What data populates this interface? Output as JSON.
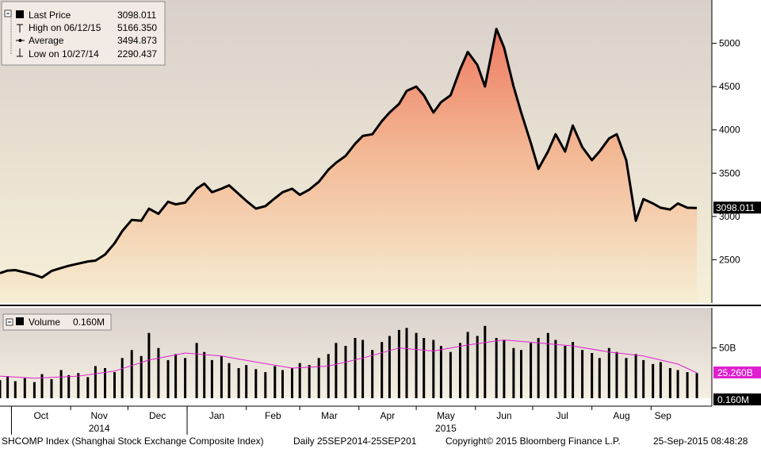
{
  "chart_data": [
    {
      "type": "area",
      "ylim": [
        2000,
        5500
      ],
      "yticks": [
        2500,
        3000,
        3500,
        4000,
        4500,
        5000
      ],
      "x_labels": [
        "Oct",
        "Nov",
        "Dec",
        "Jan",
        "Feb",
        "Mar",
        "Apr",
        "May",
        "Jun",
        "Jul",
        "Aug",
        "Sep"
      ],
      "x_year_labels": [
        "2014",
        "2015"
      ],
      "last_price_tag": "3098.011",
      "legend": [
        {
          "label": "Last Price",
          "value": "3098.011",
          "icon": "filled-square-icon"
        },
        {
          "label": "High on 06/12/15",
          "value": "5166.350",
          "icon": "high-marker-icon"
        },
        {
          "label": "Average",
          "value": "3494.873",
          "icon": "average-marker-icon"
        },
        {
          "label": "Low on 10/27/14",
          "value": "2290.437",
          "icon": "low-marker-icon"
        }
      ],
      "grid": false,
      "legend_position": "top-left",
      "colors": {
        "line": "#000000",
        "fill_top": "#ee7a62",
        "fill_bottom": "#f6eed3",
        "background_top": "#d9d0cb",
        "background_bottom": "#f6f0d8"
      },
      "series": [
        {
          "name": "Last Price",
          "x": [
            "2014-09-25",
            "2014-09-29",
            "2014-10-03",
            "2014-10-08",
            "2014-10-13",
            "2014-10-17",
            "2014-10-22",
            "2014-10-27",
            "2014-10-31",
            "2014-11-05",
            "2014-11-10",
            "2014-11-14",
            "2014-11-19",
            "2014-11-24",
            "2014-11-28",
            "2014-12-03",
            "2014-12-08",
            "2014-12-12",
            "2014-12-17",
            "2014-12-22",
            "2014-12-26",
            "2014-12-31",
            "2015-01-06",
            "2015-01-10",
            "2015-01-14",
            "2015-01-19",
            "2015-01-23",
            "2015-01-28",
            "2015-02-01",
            "2015-02-06",
            "2015-02-11",
            "2015-02-16",
            "2015-02-20",
            "2015-02-25",
            "2015-03-01",
            "2015-03-06",
            "2015-03-11",
            "2015-03-16",
            "2015-03-20",
            "2015-03-25",
            "2015-03-30",
            "2015-04-03",
            "2015-04-08",
            "2015-04-13",
            "2015-04-17",
            "2015-04-22",
            "2015-04-26",
            "2015-05-01",
            "2015-05-05",
            "2015-05-10",
            "2015-05-14",
            "2015-05-19",
            "2015-05-24",
            "2015-05-28",
            "2015-06-02",
            "2015-06-06",
            "2015-06-12",
            "2015-06-16",
            "2015-06-21",
            "2015-06-25",
            "2015-06-30",
            "2015-07-04",
            "2015-07-09",
            "2015-07-13",
            "2015-07-18",
            "2015-07-22",
            "2015-07-27",
            "2015-08-01",
            "2015-08-05",
            "2015-08-10",
            "2015-08-14",
            "2015-08-19",
            "2015-08-24",
            "2015-08-28",
            "2015-09-02",
            "2015-09-06",
            "2015-09-11",
            "2015-09-15",
            "2015-09-20",
            "2015-09-25"
          ],
          "values": [
            2345,
            2375,
            2380,
            2355,
            2325,
            2295,
            2370,
            2405,
            2430,
            2455,
            2480,
            2490,
            2560,
            2690,
            2830,
            2960,
            2950,
            3090,
            3030,
            3170,
            3140,
            3160,
            3320,
            3380,
            3280,
            3320,
            3360,
            3260,
            3180,
            3090,
            3120,
            3210,
            3280,
            3320,
            3250,
            3310,
            3400,
            3540,
            3620,
            3700,
            3840,
            3930,
            3950,
            4100,
            4200,
            4300,
            4450,
            4500,
            4400,
            4200,
            4320,
            4400,
            4700,
            4900,
            4750,
            4500,
            5166,
            4950,
            4500,
            4200,
            3850,
            3550,
            3750,
            3950,
            3750,
            4050,
            3800,
            3650,
            3750,
            3900,
            3950,
            3650,
            2950,
            3200,
            3150,
            3100,
            3080,
            3150,
            3100,
            3098
          ]
        }
      ]
    },
    {
      "type": "bar",
      "ylim": [
        0,
        90
      ],
      "yticks": [
        50
      ],
      "ytick_labels": [
        "50B"
      ],
      "legend": [
        {
          "label": "Volume",
          "value": "0.160M",
          "icon": "filled-square-icon"
        }
      ],
      "moving_average_tag": "25.260B",
      "volume_tag": "0.160M",
      "grid": false,
      "legend_position": "top-left",
      "colors": {
        "bars": "#000000",
        "moving_average": "#e020d0"
      },
      "series": [
        {
          "name": "Volume",
          "x": [
            "2014-09-25",
            "2014-09-29",
            "2014-10-03",
            "2014-10-08",
            "2014-10-13",
            "2014-10-17",
            "2014-10-22",
            "2014-10-27",
            "2014-10-31",
            "2014-11-05",
            "2014-11-10",
            "2014-11-14",
            "2014-11-19",
            "2014-11-24",
            "2014-11-28",
            "2014-12-03",
            "2014-12-08",
            "2014-12-12",
            "2014-12-17",
            "2014-12-22",
            "2014-12-26",
            "2014-12-31",
            "2015-01-06",
            "2015-01-10",
            "2015-01-14",
            "2015-01-19",
            "2015-01-23",
            "2015-01-28",
            "2015-02-01",
            "2015-02-06",
            "2015-02-11",
            "2015-02-16",
            "2015-02-20",
            "2015-02-25",
            "2015-03-01",
            "2015-03-06",
            "2015-03-11",
            "2015-03-16",
            "2015-03-20",
            "2015-03-25",
            "2015-03-30",
            "2015-04-03",
            "2015-04-08",
            "2015-04-13",
            "2015-04-17",
            "2015-04-22",
            "2015-04-26",
            "2015-05-01",
            "2015-05-05",
            "2015-05-10",
            "2015-05-14",
            "2015-05-19",
            "2015-05-24",
            "2015-05-28",
            "2015-06-02",
            "2015-06-06",
            "2015-06-12",
            "2015-06-16",
            "2015-06-21",
            "2015-06-25",
            "2015-06-30",
            "2015-07-04",
            "2015-07-09",
            "2015-07-13",
            "2015-07-18",
            "2015-07-22",
            "2015-07-27",
            "2015-08-01",
            "2015-08-05",
            "2015-08-10",
            "2015-08-14",
            "2015-08-19",
            "2015-08-24",
            "2015-08-28",
            "2015-09-02",
            "2015-09-06",
            "2015-09-11",
            "2015-09-15",
            "2015-09-20",
            "2015-09-25"
          ],
          "values": [
            18,
            22,
            17,
            20,
            16,
            24,
            19,
            28,
            23,
            25,
            21,
            32,
            30,
            26,
            40,
            48,
            42,
            65,
            50,
            38,
            44,
            40,
            55,
            46,
            38,
            42,
            35,
            30,
            33,
            29,
            26,
            32,
            28,
            30,
            35,
            33,
            40,
            44,
            55,
            52,
            60,
            58,
            48,
            56,
            62,
            68,
            70,
            65,
            60,
            58,
            52,
            46,
            55,
            66,
            62,
            72,
            60,
            58,
            50,
            48,
            55,
            60,
            65,
            58,
            52,
            56,
            48,
            45,
            40,
            50,
            46,
            40,
            44,
            38,
            34,
            36,
            30,
            28,
            26,
            25
          ]
        },
        {
          "name": "Moving Average",
          "x": [
            "2014-09-25",
            "2014-10-13",
            "2014-11-05",
            "2014-11-24",
            "2014-12-12",
            "2014-12-31",
            "2015-01-19",
            "2015-02-06",
            "2015-02-25",
            "2015-03-16",
            "2015-04-03",
            "2015-04-22",
            "2015-05-10",
            "2015-05-28",
            "2015-06-16",
            "2015-07-04",
            "2015-07-22",
            "2015-08-10",
            "2015-08-28",
            "2015-09-15",
            "2015-09-25"
          ],
          "values": [
            22,
            20,
            22,
            27,
            38,
            45,
            42,
            36,
            30,
            32,
            40,
            50,
            47,
            53,
            58,
            55,
            52,
            46,
            42,
            34,
            25.26
          ]
        }
      ]
    }
  ],
  "footer": {
    "index": "SHCOMP Index (Shanghai Stock Exchange Composite Index)",
    "range": "Daily 25SEP2014-25SEP201",
    "copyright": "Copyright© 2015 Bloomberg Finance L.P.",
    "timestamp": "25-Sep-2015 08:48:28"
  }
}
